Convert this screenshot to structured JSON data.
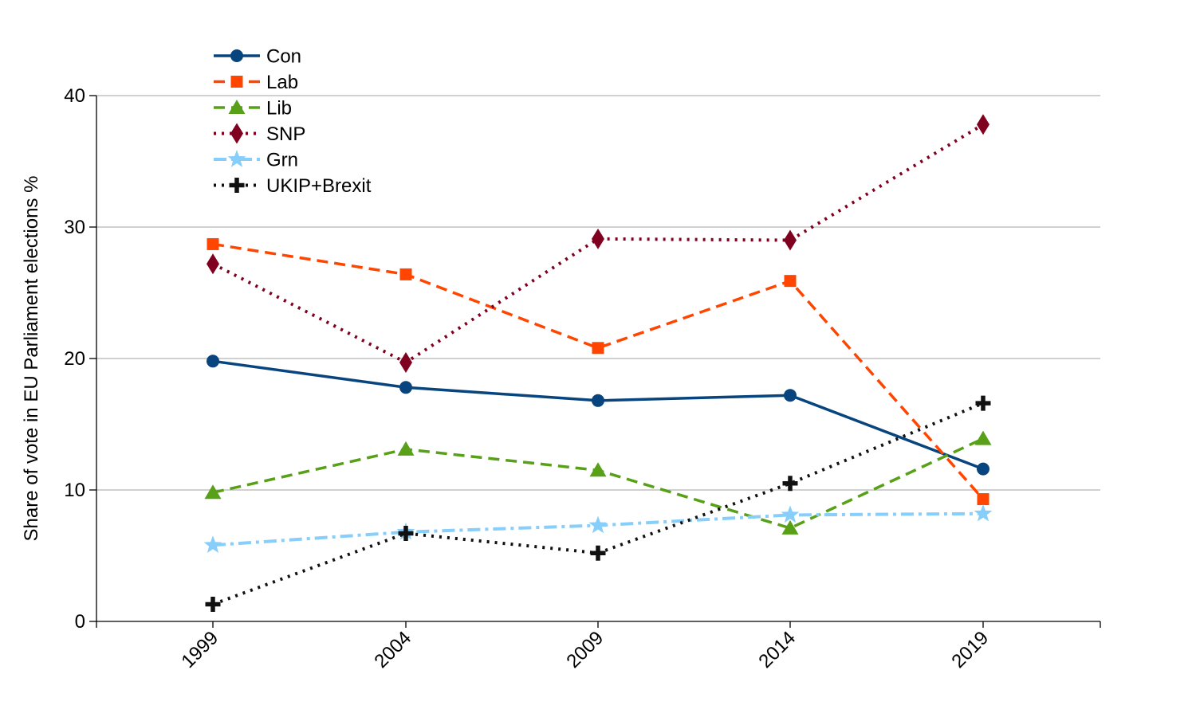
{
  "chart_data": {
    "type": "line",
    "title": "",
    "xlabel": "",
    "ylabel": "Share of vote in EU Parliament elections %",
    "categories": [
      "1999",
      "2004",
      "2009",
      "2014",
      "2019"
    ],
    "ylim": [
      0,
      40
    ],
    "yticks": [
      "0",
      "10",
      "20",
      "30",
      "40"
    ],
    "grid": "horizontal",
    "legend_position": "top-left",
    "series": [
      {
        "name": "Con",
        "values": [
          19.8,
          17.8,
          16.8,
          17.2,
          11.6
        ],
        "color": "#08457e",
        "dash": "solid",
        "marker": "circle"
      },
      {
        "name": "Lab",
        "values": [
          28.7,
          26.4,
          20.8,
          25.9,
          9.3
        ],
        "color": "#ff4500",
        "dash": "dashed",
        "marker": "square"
      },
      {
        "name": "Lib",
        "values": [
          9.8,
          13.1,
          11.5,
          7.1,
          13.9
        ],
        "color": "#57a018",
        "dash": "dashed",
        "marker": "triangle"
      },
      {
        "name": "SNP",
        "values": [
          27.2,
          19.7,
          29.1,
          29.0,
          37.8
        ],
        "color": "#800020",
        "dash": "dotted",
        "marker": "diamond"
      },
      {
        "name": "Grn",
        "values": [
          5.8,
          6.8,
          7.3,
          8.1,
          8.2
        ],
        "color": "#87cefa",
        "dash": "dashdot",
        "marker": "star"
      },
      {
        "name": "UKIP+Brexit",
        "values": [
          1.3,
          6.7,
          5.2,
          10.5,
          16.6
        ],
        "color": "#111111",
        "dash": "dotted",
        "marker": "plus"
      }
    ]
  }
}
